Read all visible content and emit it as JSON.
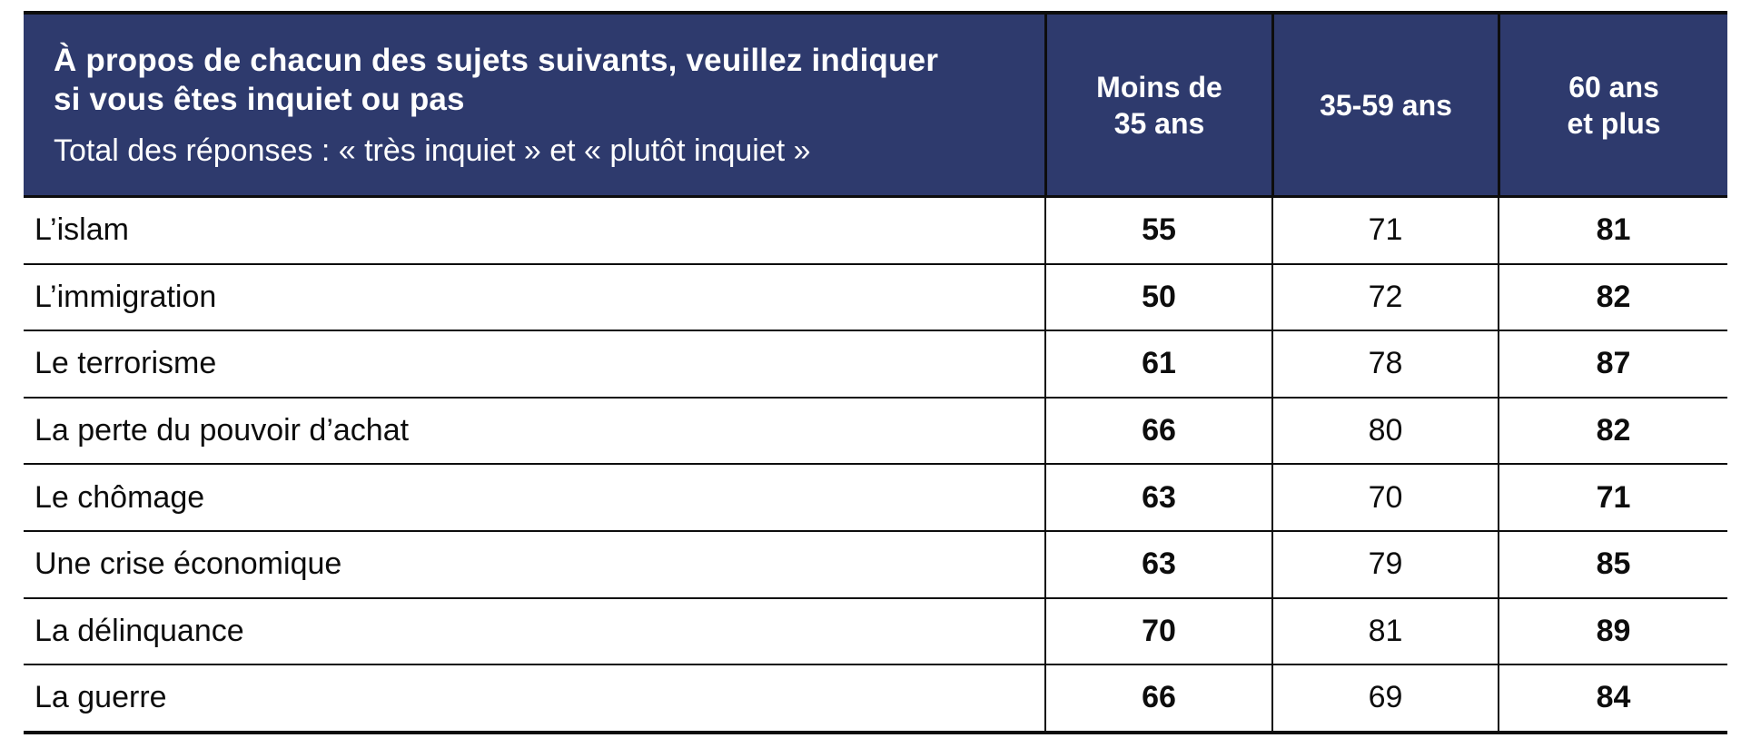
{
  "colors": {
    "header_bg": "#2e3a6d",
    "header_text": "#ffffff",
    "body_text": "#0d0d0d",
    "border": "#0d0d0d"
  },
  "header": {
    "title_line1": "À propos de chacun des sujets suivants, veuillez indiquer",
    "title_line2": "si vous êtes inquiet ou pas",
    "subtitle": "Total des réponses : « très inquiet » et « plutôt inquiet »",
    "columns": [
      {
        "line1": "Moins de",
        "line2": "35 ans"
      },
      {
        "line1": "35-59 ans",
        "line2": ""
      },
      {
        "line1": "60 ans",
        "line2": "et plus"
      }
    ]
  },
  "rows": [
    {
      "label": "L’islam",
      "values": [
        "55",
        "71",
        "81"
      ]
    },
    {
      "label": "L’immigration",
      "values": [
        "50",
        "72",
        "82"
      ]
    },
    {
      "label": "Le terrorisme",
      "values": [
        "61",
        "78",
        "87"
      ]
    },
    {
      "label": "La perte du pouvoir d’achat",
      "values": [
        "66",
        "80",
        "82"
      ]
    },
    {
      "label": "Le chômage",
      "values": [
        "63",
        "70",
        "71"
      ]
    },
    {
      "label": "Une crise économique",
      "values": [
        "63",
        "79",
        "85"
      ]
    },
    {
      "label": "La délinquance",
      "values": [
        "70",
        "81",
        "89"
      ]
    },
    {
      "label": "La guerre",
      "values": [
        "66",
        "69",
        "84"
      ]
    }
  ],
  "chart_data": {
    "type": "table",
    "title": "À propos de chacun des sujets suivants, veuillez indiquer si vous êtes inquiet ou pas",
    "subtitle": "Total des réponses : « très inquiet » et « plutôt inquiet »",
    "categories": [
      "L’islam",
      "L’immigration",
      "Le terrorisme",
      "La perte du pouvoir d’achat",
      "Le chômage",
      "Une crise économique",
      "La délinquance",
      "La guerre"
    ],
    "series": [
      {
        "name": "Moins de 35 ans",
        "values": [
          55,
          50,
          61,
          66,
          63,
          63,
          70,
          66
        ]
      },
      {
        "name": "35-59 ans",
        "values": [
          71,
          72,
          78,
          80,
          70,
          79,
          81,
          69
        ]
      },
      {
        "name": "60 ans et plus",
        "values": [
          81,
          82,
          87,
          82,
          71,
          85,
          89,
          84
        ]
      }
    ],
    "emphasis": "values of columns 'Moins de 35 ans' and '60 ans et plus' are shown in bold"
  }
}
